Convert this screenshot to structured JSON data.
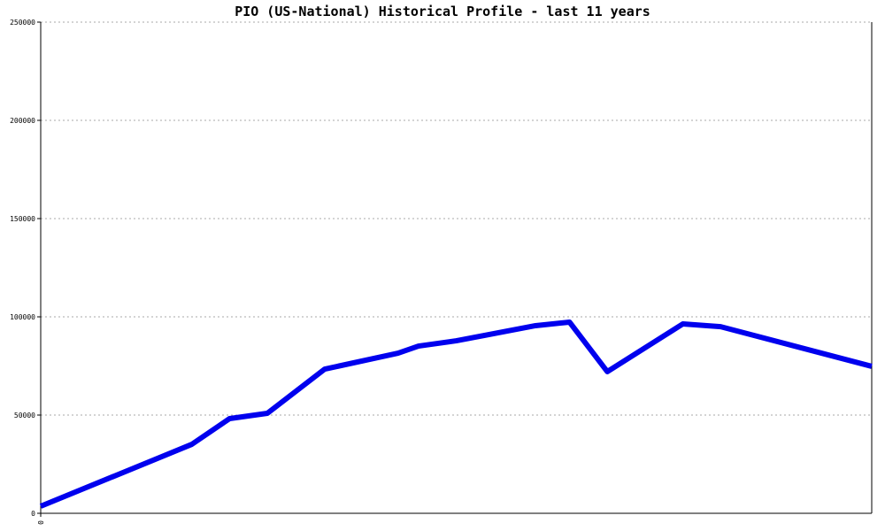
{
  "chart_data": {
    "type": "line",
    "title": "PIO (US-National) Historical Profile - last 11 years",
    "x": [
      0,
      2,
      2.5,
      3,
      3.76,
      4.73,
      5,
      5.5,
      6.55,
      7,
      7.5,
      8.5,
      9,
      11
    ],
    "series": [
      {
        "color": "#0000ee",
        "values": [
          3600,
          35100,
          48200,
          50900,
          73400,
          81500,
          85100,
          87800,
          95500,
          97300,
          72100,
          96400,
          95000,
          74800
        ]
      }
    ],
    "xlim": [
      0,
      11
    ],
    "xticks": [
      0
    ],
    "ylim": [
      0,
      250000
    ],
    "yticks": [
      0,
      50000,
      100000,
      150000,
      200000,
      250000
    ],
    "grid": true
  }
}
